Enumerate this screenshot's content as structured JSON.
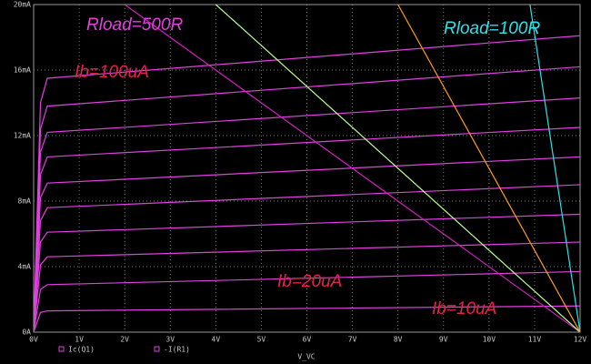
{
  "chart_data": {
    "type": "line",
    "x_label": "V_VC",
    "xlim": [
      0,
      12
    ],
    "ylim": [
      0,
      20
    ],
    "xticks": [
      {
        "value": 0,
        "label": "0V"
      },
      {
        "value": 1,
        "label": "1V"
      },
      {
        "value": 2,
        "label": "2V"
      },
      {
        "value": 3,
        "label": "3V"
      },
      {
        "value": 4,
        "label": "4V"
      },
      {
        "value": 5,
        "label": "5V"
      },
      {
        "value": 6,
        "label": "6V"
      },
      {
        "value": 7,
        "label": "7V"
      },
      {
        "value": 8,
        "label": "8V"
      },
      {
        "value": 9,
        "label": "9V"
      },
      {
        "value": 10,
        "label": "10V"
      },
      {
        "value": 11,
        "label": "11V"
      },
      {
        "value": 12,
        "label": "12V"
      }
    ],
    "yticks": [
      {
        "value": 0,
        "label": "0A"
      },
      {
        "value": 4,
        "label": "4mA"
      },
      {
        "value": 8,
        "label": "8mA"
      },
      {
        "value": 12,
        "label": "12mA"
      },
      {
        "value": 16,
        "label": "16mA"
      },
      {
        "value": 20,
        "label": "20mA"
      }
    ],
    "grid": true,
    "legend": [
      "Ic(Q1)",
      "-I(R1)"
    ],
    "annotations": [
      {
        "text": "Rload=500R",
        "color": "#e040e0"
      },
      {
        "text": "Rload=100R",
        "color": "#30e0e8"
      },
      {
        "text": "Ib=100uA",
        "color": "#e8204a"
      },
      {
        "text": "Ib=20uA",
        "color": "#e8204a"
      },
      {
        "text": "Ib=10uA",
        "color": "#e8204a"
      }
    ],
    "series": [
      {
        "color": "#e040e0",
        "x": [
          0,
          0.15,
          0.3,
          12
        ],
        "values": [
          0,
          1.2,
          1.3,
          1.6
        ]
      },
      {
        "color": "#e040e0",
        "x": [
          0,
          0.15,
          0.3,
          12
        ],
        "values": [
          0,
          2.6,
          2.9,
          3.7
        ]
      },
      {
        "color": "#e040e0",
        "x": [
          0,
          0.15,
          0.3,
          12
        ],
        "values": [
          0,
          4.1,
          4.6,
          5.5
        ]
      },
      {
        "color": "#e040e0",
        "x": [
          0,
          0.15,
          0.3,
          12
        ],
        "values": [
          0,
          5.5,
          6.1,
          7.2
        ]
      },
      {
        "color": "#e040e0",
        "x": [
          0,
          0.15,
          0.3,
          12
        ],
        "values": [
          0,
          6.8,
          7.6,
          9.0
        ]
      },
      {
        "color": "#e040e0",
        "x": [
          0,
          0.15,
          0.3,
          12
        ],
        "values": [
          0,
          8.2,
          9.1,
          10.7
        ]
      },
      {
        "color": "#e040e0",
        "x": [
          0,
          0.15,
          0.3,
          12
        ],
        "values": [
          0,
          9.6,
          10.7,
          12.5
        ]
      },
      {
        "color": "#e040e0",
        "x": [
          0,
          0.15,
          0.3,
          12
        ],
        "values": [
          0,
          11.0,
          12.2,
          14.3
        ]
      },
      {
        "color": "#e040e0",
        "x": [
          0,
          0.15,
          0.3,
          12
        ],
        "values": [
          0,
          12.4,
          13.8,
          16.2
        ]
      },
      {
        "color": "#e040e0",
        "x": [
          0,
          0.15,
          0.3,
          12
        ],
        "values": [
          0,
          14.0,
          15.5,
          18.1
        ]
      },
      {
        "color": "#d020c0",
        "x": [
          2,
          12
        ],
        "values": [
          20,
          0
        ]
      },
      {
        "color": "#b8ff90",
        "x": [
          4,
          12
        ],
        "values": [
          20,
          0
        ]
      },
      {
        "color": "#ff9a20",
        "x": [
          8,
          12
        ],
        "values": [
          20,
          0
        ]
      },
      {
        "color": "#30e0e8",
        "x": [
          10.9,
          12
        ],
        "values": [
          20,
          0
        ]
      }
    ]
  }
}
